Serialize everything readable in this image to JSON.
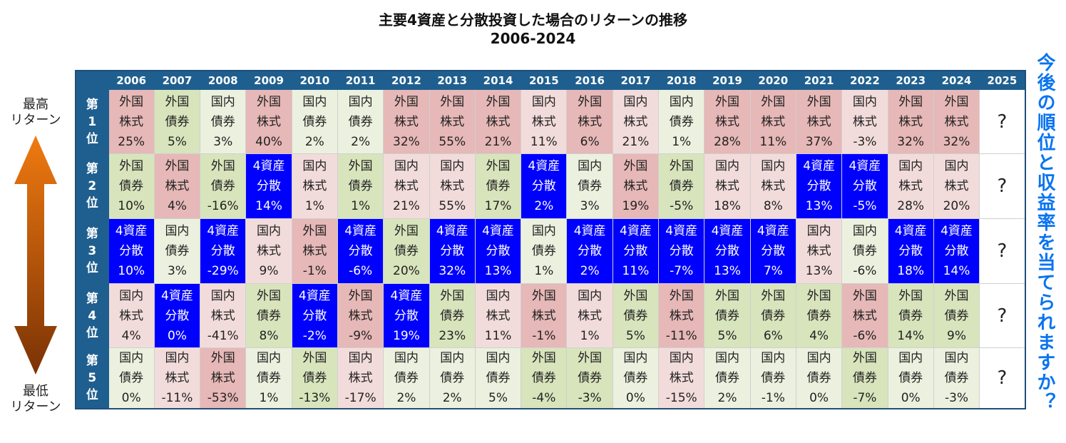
{
  "title": [
    "主要4資産と分散投資した場合のリターンの推移",
    "2006-2024"
  ],
  "top_label": [
    "最高",
    "リターン"
  ],
  "bottom_label": [
    "最低",
    "リターン"
  ],
  "side_question": "今後の順位と収益率を当てられますか？",
  "table": {
    "years": [
      "2006",
      "2007",
      "2008",
      "2009",
      "2010",
      "2011",
      "2012",
      "2013",
      "2014",
      "2015",
      "2016",
      "2017",
      "2018",
      "2019",
      "2020",
      "2021",
      "2022",
      "2023",
      "2024",
      "2025"
    ],
    "rows": [
      {
        "rank": [
          "第",
          "1",
          "位"
        ],
        "next": "?",
        "cells": [
          [
            "外国",
            "株式",
            "25%",
            "#e6b8b7",
            "#222"
          ],
          [
            "外国",
            "債券",
            "5%",
            "#d8e4bc",
            "#222"
          ],
          [
            "国内",
            "債券",
            "3%",
            "#ebf1de",
            "#222"
          ],
          [
            "外国",
            "株式",
            "40%",
            "#e6b8b7",
            "#222"
          ],
          [
            "国内",
            "債券",
            "2%",
            "#ebf1de",
            "#222"
          ],
          [
            "国内",
            "債券",
            "2%",
            "#ebf1de",
            "#222"
          ],
          [
            "外国",
            "株式",
            "32%",
            "#e6b8b7",
            "#222"
          ],
          [
            "外国",
            "株式",
            "55%",
            "#e6b8b7",
            "#222"
          ],
          [
            "外国",
            "株式",
            "21%",
            "#e6b8b7",
            "#222"
          ],
          [
            "国内",
            "株式",
            "11%",
            "#f2dcdb",
            "#222"
          ],
          [
            "外国",
            "株式",
            "6%",
            "#e6b8b7",
            "#222"
          ],
          [
            "国内",
            "株式",
            "21%",
            "#f2dcdb",
            "#222"
          ],
          [
            "国内",
            "債券",
            "1%",
            "#ebf1de",
            "#222"
          ],
          [
            "外国",
            "株式",
            "28%",
            "#e6b8b7",
            "#222"
          ],
          [
            "外国",
            "株式",
            "11%",
            "#e6b8b7",
            "#222"
          ],
          [
            "外国",
            "株式",
            "37%",
            "#e6b8b7",
            "#222"
          ],
          [
            "国内",
            "株式",
            "-3%",
            "#f2dcdb",
            "#222"
          ],
          [
            "外国",
            "株式",
            "32%",
            "#e6b8b7",
            "#222"
          ],
          [
            "外国",
            "株式",
            "32%",
            "#e6b8b7",
            "#222"
          ]
        ]
      },
      {
        "rank": [
          "第",
          "2",
          "位"
        ],
        "next": "?",
        "cells": [
          [
            "外国",
            "債券",
            "10%",
            "#d8e4bc",
            "#222"
          ],
          [
            "外国",
            "株式",
            "4%",
            "#e6b8b7",
            "#222"
          ],
          [
            "外国",
            "債券",
            "-16%",
            "#d8e4bc",
            "#222"
          ],
          [
            "4資産",
            "分散",
            "14%",
            "#0000ff",
            "#fff"
          ],
          [
            "国内",
            "株式",
            "1%",
            "#f2dcdb",
            "#222"
          ],
          [
            "外国",
            "債券",
            "1%",
            "#d8e4bc",
            "#222"
          ],
          [
            "国内",
            "株式",
            "21%",
            "#f2dcdb",
            "#222"
          ],
          [
            "国内",
            "株式",
            "55%",
            "#f2dcdb",
            "#222"
          ],
          [
            "外国",
            "債券",
            "17%",
            "#d8e4bc",
            "#222"
          ],
          [
            "4資産",
            "分散",
            "2%",
            "#0000ff",
            "#fff"
          ],
          [
            "国内",
            "債券",
            "3%",
            "#ebf1de",
            "#222"
          ],
          [
            "外国",
            "株式",
            "19%",
            "#e6b8b7",
            "#222"
          ],
          [
            "外国",
            "債券",
            "-5%",
            "#d8e4bc",
            "#222"
          ],
          [
            "国内",
            "株式",
            "18%",
            "#f2dcdb",
            "#222"
          ],
          [
            "国内",
            "株式",
            "8%",
            "#f2dcdb",
            "#222"
          ],
          [
            "4資産",
            "分散",
            "13%",
            "#0000ff",
            "#fff"
          ],
          [
            "4資産",
            "分散",
            "-5%",
            "#0000ff",
            "#fff"
          ],
          [
            "国内",
            "株式",
            "28%",
            "#f2dcdb",
            "#222"
          ],
          [
            "国内",
            "株式",
            "20%",
            "#f2dcdb",
            "#222"
          ]
        ]
      },
      {
        "rank": [
          "第",
          "3",
          "位"
        ],
        "next": "?",
        "cells": [
          [
            "4資産",
            "分散",
            "10%",
            "#0000ff",
            "#fff"
          ],
          [
            "国内",
            "債券",
            "3%",
            "#ebf1de",
            "#222"
          ],
          [
            "4資産",
            "分散",
            "-29%",
            "#0000ff",
            "#fff"
          ],
          [
            "国内",
            "株式",
            "9%",
            "#f2dcdb",
            "#222"
          ],
          [
            "外国",
            "株式",
            "-1%",
            "#e6b8b7",
            "#222"
          ],
          [
            "4資産",
            "分散",
            "-6%",
            "#0000ff",
            "#fff"
          ],
          [
            "外国",
            "債券",
            "20%",
            "#d8e4bc",
            "#222"
          ],
          [
            "4資産",
            "分散",
            "32%",
            "#0000ff",
            "#fff"
          ],
          [
            "4資産",
            "分散",
            "13%",
            "#0000ff",
            "#fff"
          ],
          [
            "国内",
            "債券",
            "1%",
            "#ebf1de",
            "#222"
          ],
          [
            "4資産",
            "分散",
            "2%",
            "#0000ff",
            "#fff"
          ],
          [
            "4資産",
            "分散",
            "11%",
            "#0000ff",
            "#fff"
          ],
          [
            "4資産",
            "分散",
            "-7%",
            "#0000ff",
            "#fff"
          ],
          [
            "4資産",
            "分散",
            "13%",
            "#0000ff",
            "#fff"
          ],
          [
            "4資産",
            "分散",
            "7%",
            "#0000ff",
            "#fff"
          ],
          [
            "国内",
            "株式",
            "13%",
            "#f2dcdb",
            "#222"
          ],
          [
            "国内",
            "債券",
            "-6%",
            "#ebf1de",
            "#222"
          ],
          [
            "4資産",
            "分散",
            "18%",
            "#0000ff",
            "#fff"
          ],
          [
            "4資産",
            "分散",
            "14%",
            "#0000ff",
            "#fff"
          ]
        ]
      },
      {
        "rank": [
          "第",
          "4",
          "位"
        ],
        "next": "?",
        "cells": [
          [
            "国内",
            "株式",
            "4%",
            "#f2dcdb",
            "#222"
          ],
          [
            "4資産",
            "分散",
            "0%",
            "#0000ff",
            "#fff"
          ],
          [
            "国内",
            "株式",
            "-41%",
            "#f2dcdb",
            "#222"
          ],
          [
            "外国",
            "債券",
            "8%",
            "#d8e4bc",
            "#222"
          ],
          [
            "4資産",
            "分散",
            "-2%",
            "#0000ff",
            "#fff"
          ],
          [
            "外国",
            "株式",
            "-9%",
            "#e6b8b7",
            "#222"
          ],
          [
            "4資産",
            "分散",
            "19%",
            "#0000ff",
            "#fff"
          ],
          [
            "外国",
            "債券",
            "23%",
            "#d8e4bc",
            "#222"
          ],
          [
            "国内",
            "株式",
            "11%",
            "#f2dcdb",
            "#222"
          ],
          [
            "外国",
            "株式",
            "-1%",
            "#e6b8b7",
            "#222"
          ],
          [
            "国内",
            "株式",
            "1%",
            "#f2dcdb",
            "#222"
          ],
          [
            "外国",
            "債券",
            "5%",
            "#d8e4bc",
            "#222"
          ],
          [
            "外国",
            "株式",
            "-11%",
            "#e6b8b7",
            "#222"
          ],
          [
            "外国",
            "債券",
            "5%",
            "#d8e4bc",
            "#222"
          ],
          [
            "外国",
            "債券",
            "6%",
            "#d8e4bc",
            "#222"
          ],
          [
            "外国",
            "債券",
            "4%",
            "#d8e4bc",
            "#222"
          ],
          [
            "外国",
            "株式",
            "-6%",
            "#e6b8b7",
            "#222"
          ],
          [
            "外国",
            "債券",
            "14%",
            "#d8e4bc",
            "#222"
          ],
          [
            "外国",
            "債券",
            "9%",
            "#d8e4bc",
            "#222"
          ]
        ]
      },
      {
        "rank": [
          "第",
          "5",
          "位"
        ],
        "next": "?",
        "cells": [
          [
            "国内",
            "債券",
            "0%",
            "#ebf1de",
            "#222"
          ],
          [
            "国内",
            "株式",
            "-11%",
            "#f2dcdb",
            "#222"
          ],
          [
            "外国",
            "株式",
            "-53%",
            "#e6b8b7",
            "#222"
          ],
          [
            "国内",
            "債券",
            "1%",
            "#ebf1de",
            "#222"
          ],
          [
            "外国",
            "債券",
            "-13%",
            "#d8e4bc",
            "#222"
          ],
          [
            "国内",
            "株式",
            "-17%",
            "#f2dcdb",
            "#222"
          ],
          [
            "国内",
            "債券",
            "2%",
            "#ebf1de",
            "#222"
          ],
          [
            "国内",
            "債券",
            "2%",
            "#ebf1de",
            "#222"
          ],
          [
            "国内",
            "債券",
            "5%",
            "#ebf1de",
            "#222"
          ],
          [
            "外国",
            "債券",
            "-4%",
            "#d8e4bc",
            "#222"
          ],
          [
            "外国",
            "債券",
            "-3%",
            "#d8e4bc",
            "#222"
          ],
          [
            "国内",
            "債券",
            "0%",
            "#ebf1de",
            "#222"
          ],
          [
            "国内",
            "株式",
            "-15%",
            "#f2dcdb",
            "#222"
          ],
          [
            "国内",
            "債券",
            "2%",
            "#ebf1de",
            "#222"
          ],
          [
            "国内",
            "債券",
            "-1%",
            "#ebf1de",
            "#222"
          ],
          [
            "国内",
            "債券",
            "0%",
            "#ebf1de",
            "#222"
          ],
          [
            "外国",
            "債券",
            "-7%",
            "#d8e4bc",
            "#222"
          ],
          [
            "国内",
            "債券",
            "0%",
            "#ebf1de",
            "#222"
          ],
          [
            "国内",
            "債券",
            "-3%",
            "#ebf1de",
            "#222"
          ]
        ]
      }
    ]
  }
}
